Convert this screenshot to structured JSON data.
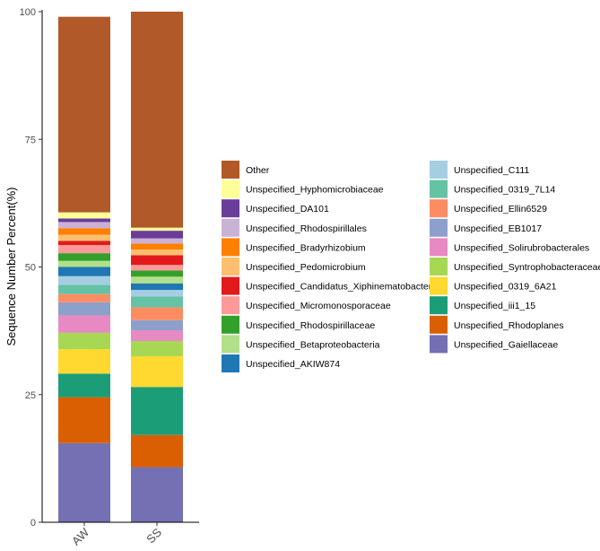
{
  "chart_data": {
    "type": "bar",
    "stacked": true,
    "title": "",
    "xlabel": "",
    "ylabel": "Sequence Number Percent(%)",
    "ylim": [
      0,
      100
    ],
    "yticks": [
      "0",
      "25",
      "50",
      "75",
      "100"
    ],
    "categories": [
      "AW",
      "SS"
    ],
    "series": [
      {
        "name": "Unspecified_Gaiellaceae",
        "color": "#7570b3",
        "values": [
          15.5,
          10.8
        ]
      },
      {
        "name": "Unspecified_Rhodoplanes",
        "color": "#d95f02",
        "values": [
          9.0,
          6.3
        ]
      },
      {
        "name": "Unspecified_iii1_15",
        "color": "#1b9e77",
        "values": [
          4.6,
          9.4
        ]
      },
      {
        "name": "Unspecified_0319_6A21",
        "color": "#ffd92f",
        "values": [
          4.8,
          6.0
        ]
      },
      {
        "name": "Unspecified_Syntrophobacteraceae",
        "color": "#a6d854",
        "values": [
          3.2,
          3.0
        ]
      },
      {
        "name": "Unspecified_Solirubrobacterales",
        "color": "#e78ac3",
        "values": [
          3.4,
          2.1
        ]
      },
      {
        "name": "Unspecified_EB1017",
        "color": "#8da0cb",
        "values": [
          2.6,
          2.0
        ]
      },
      {
        "name": "Unspecified_Ellin6529",
        "color": "#fc8d62",
        "values": [
          1.6,
          2.5
        ]
      },
      {
        "name": "Unspecified_0319_7L14",
        "color": "#66c2a5",
        "values": [
          1.8,
          2.1
        ]
      },
      {
        "name": "Unspecified_C111",
        "color": "#a6cee3",
        "values": [
          1.7,
          1.3
        ]
      },
      {
        "name": "Unspecified_AKIW874",
        "color": "#1f78b4",
        "values": [
          1.8,
          1.3
        ]
      },
      {
        "name": "Unspecified_Betaproteobacteria",
        "color": "#b2df8a",
        "values": [
          1.2,
          1.3
        ]
      },
      {
        "name": "Unspecified_Rhodospirillaceae",
        "color": "#33a02c",
        "values": [
          1.5,
          1.2
        ]
      },
      {
        "name": "Unspecified_Micromonosporaceae",
        "color": "#fb9a99",
        "values": [
          1.6,
          1.1
        ]
      },
      {
        "name": "Unspecified_Candidatus_Xiphinematobacter",
        "color": "#e31a1c",
        "values": [
          0.8,
          1.9
        ]
      },
      {
        "name": "Unspecified_Pedomicrobium",
        "color": "#fdbf6f",
        "values": [
          1.2,
          1.1
        ]
      },
      {
        "name": "Unspecified_Bradyrhizobium",
        "color": "#ff7f00",
        "values": [
          1.3,
          1.2
        ]
      },
      {
        "name": "Unspecified_Rhodospirillales",
        "color": "#cab2d6",
        "values": [
          1.2,
          1.0
        ]
      },
      {
        "name": "Unspecified_DA101",
        "color": "#6a3d9a",
        "values": [
          0.7,
          1.5
        ]
      },
      {
        "name": "Unspecified_Hyphomicrobiaceae",
        "color": "#ffff99",
        "values": [
          1.2,
          0.6
        ]
      },
      {
        "name": "Other",
        "color": "#b15928",
        "values": [
          38.3,
          42.3
        ]
      }
    ],
    "legend": {
      "position": "right",
      "columns": [
        [
          "Other",
          "Unspecified_Hyphomicrobiaceae",
          "Unspecified_DA101",
          "Unspecified_Rhodospirillales",
          "Unspecified_Bradyrhizobium",
          "Unspecified_Pedomicrobium",
          "Unspecified_Candidatus_Xiphinematobacter",
          "Unspecified_Micromonosporaceae",
          "Unspecified_Rhodospirillaceae",
          "Unspecified_Betaproteobacteria",
          "Unspecified_AKIW874"
        ],
        [
          "Unspecified_C111",
          "Unspecified_0319_7L14",
          "Unspecified_Ellin6529",
          "Unspecified_EB1017",
          "Unspecified_Solirubrobacterales",
          "Unspecified_Syntrophobacteraceae",
          "Unspecified_0319_6A21",
          "Unspecified_iii1_15",
          "Unspecified_Rhodoplanes",
          "Unspecified_Gaiellaceae"
        ]
      ]
    }
  }
}
